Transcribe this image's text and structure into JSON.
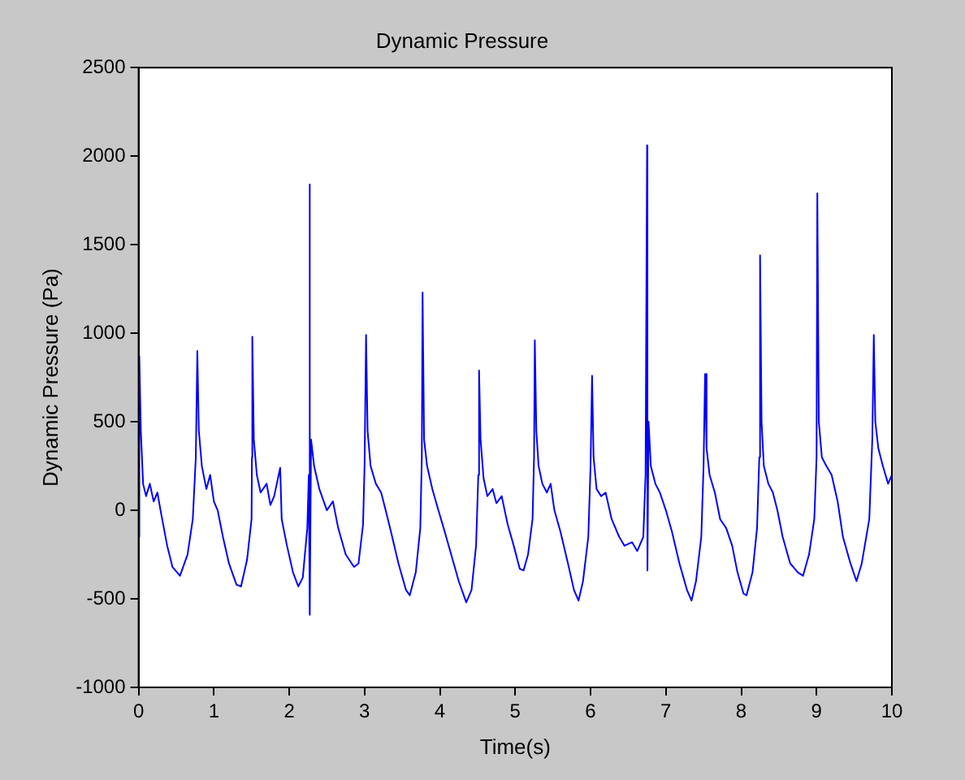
{
  "chart_data": {
    "type": "line",
    "title": "Dynamic Pressure",
    "xlabel": "Time(s)",
    "ylabel": "Dynamic Pressure (Pa)",
    "xlim": [
      0,
      10
    ],
    "xticks": [
      0,
      1,
      2,
      3,
      4,
      5,
      6,
      7,
      8,
      9,
      10
    ],
    "ylim": [
      -1000,
      2500
    ],
    "yticks": [
      -1000,
      -500,
      0,
      500,
      1000,
      1500,
      2000,
      2500
    ],
    "grid": false,
    "legend": false,
    "marker": "none",
    "line_style": "solid",
    "series": [
      {
        "color": "#0000ff",
        "x": [
          0,
          0.01,
          0.03,
          0.06,
          0.1,
          0.15,
          0.2,
          0.25,
          0.3,
          0.38,
          0.45,
          0.55,
          0.65,
          0.72,
          0.76,
          0.78,
          0.8,
          0.84,
          0.9,
          0.95,
          1.0,
          1.05,
          1.12,
          1.2,
          1.3,
          1.36,
          1.44,
          1.5,
          1.505,
          1.51,
          1.53,
          1.57,
          1.62,
          1.7,
          1.75,
          1.8,
          1.88,
          1.9,
          1.97,
          2.05,
          2.12,
          2.18,
          2.24,
          2.26,
          2.27,
          2.275,
          2.29,
          2.33,
          2.4,
          2.5,
          2.58,
          2.65,
          2.75,
          2.86,
          2.92,
          2.98,
          3.0,
          3.02,
          3.04,
          3.08,
          3.15,
          3.22,
          3.28,
          3.35,
          3.45,
          3.55,
          3.6,
          3.68,
          3.74,
          3.76,
          3.77,
          3.79,
          3.83,
          3.9,
          3.98,
          4.05,
          4.15,
          4.25,
          4.35,
          4.42,
          4.48,
          4.51,
          4.52,
          4.54,
          4.58,
          4.63,
          4.7,
          4.75,
          4.82,
          4.9,
          4.98,
          5.06,
          5.11,
          5.17,
          5.23,
          5.25,
          5.26,
          5.28,
          5.31,
          5.36,
          5.42,
          5.47,
          5.52,
          5.6,
          5.7,
          5.78,
          5.84,
          5.9,
          5.97,
          6.0,
          6.02,
          6.04,
          6.08,
          6.14,
          6.2,
          6.28,
          6.38,
          6.45,
          6.55,
          6.62,
          6.7,
          6.73,
          6.75,
          6.755,
          6.77,
          6.8,
          6.86,
          6.92,
          7.0,
          7.08,
          7.18,
          7.28,
          7.34,
          7.4,
          7.47,
          7.5,
          7.52,
          7.54,
          7.58,
          7.65,
          7.72,
          7.8,
          7.88,
          7.95,
          8.03,
          8.07,
          8.15,
          8.21,
          8.24,
          8.25,
          8.27,
          8.3,
          8.36,
          8.42,
          8.48,
          8.55,
          8.65,
          8.75,
          8.82,
          8.9,
          8.97,
          9.0,
          9.01,
          9.03,
          9.07,
          9.13,
          9.2,
          9.28,
          9.35,
          9.45,
          9.53,
          9.6,
          9.7,
          9.74,
          9.76,
          9.78,
          9.82,
          9.88,
          9.95,
          10.0
        ],
        "values": [
          -150,
          870,
          450,
          150,
          80,
          150,
          50,
          100,
          -20,
          -200,
          -320,
          -370,
          -250,
          -50,
          300,
          900,
          450,
          250,
          120,
          200,
          50,
          0,
          -150,
          -300,
          -420,
          -430,
          -280,
          -50,
          300,
          980,
          400,
          200,
          100,
          150,
          30,
          80,
          240,
          -50,
          -200,
          -350,
          -430,
          -380,
          -100,
          200,
          1840,
          -590,
          400,
          250,
          120,
          0,
          50,
          -100,
          -250,
          -320,
          -300,
          -80,
          250,
          990,
          450,
          250,
          150,
          100,
          0,
          -120,
          -300,
          -450,
          -480,
          -350,
          -100,
          300,
          1230,
          400,
          250,
          120,
          0,
          -100,
          -250,
          -400,
          -520,
          -450,
          -200,
          200,
          790,
          400,
          180,
          80,
          120,
          40,
          80,
          -80,
          -200,
          -330,
          -340,
          -250,
          -50,
          300,
          960,
          450,
          250,
          150,
          100,
          150,
          0,
          -120,
          -300,
          -450,
          -510,
          -400,
          -150,
          250,
          760,
          300,
          120,
          80,
          100,
          -50,
          -150,
          -200,
          -180,
          -230,
          -150,
          200,
          2060,
          -340,
          500,
          250,
          150,
          100,
          0,
          -120,
          -300,
          -450,
          -510,
          -400,
          -150,
          250,
          770,
          350,
          200,
          100,
          -50,
          -100,
          -200,
          -350,
          -470,
          -480,
          -350,
          -100,
          300,
          1440,
          500,
          250,
          150,
          100,
          0,
          -150,
          -300,
          -350,
          -370,
          -250,
          -50,
          300,
          1790,
          500,
          300,
          250,
          200,
          50,
          -150,
          -300,
          -400,
          -300,
          -50,
          400,
          990,
          500,
          350,
          250,
          150,
          200
        ]
      }
    ]
  }
}
